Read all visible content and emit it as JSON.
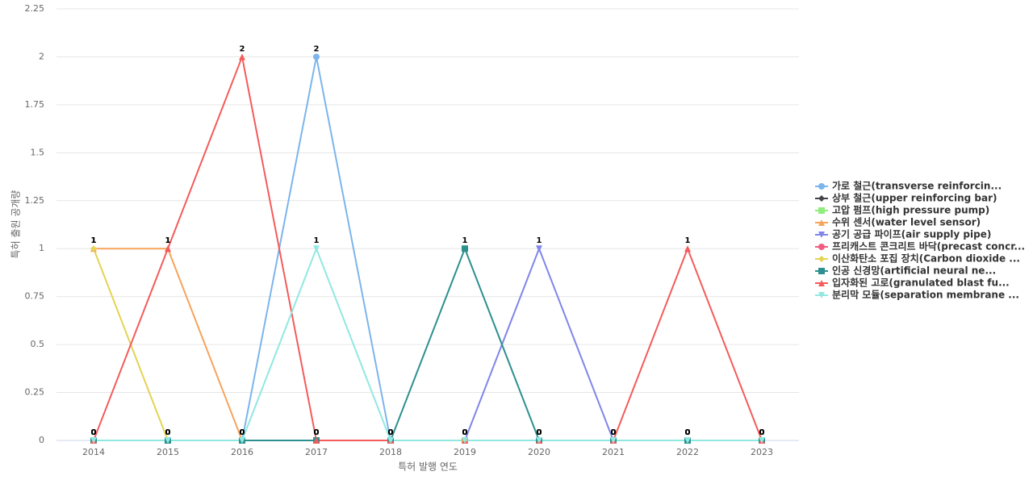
{
  "chart_data": {
    "type": "line",
    "x_label": "특허 발행 연도",
    "y_label": "특허 출원 공개량",
    "categories": [
      "2014",
      "2015",
      "2016",
      "2017",
      "2018",
      "2019",
      "2020",
      "2021",
      "2022",
      "2023"
    ],
    "ylim": [
      0,
      2.25
    ],
    "yticks": [
      0,
      0.25,
      0.5,
      0.75,
      1,
      1.25,
      1.5,
      1.75,
      2,
      2.25
    ],
    "grid": true,
    "series": [
      {
        "name": "가로 철근(transverse reinforcin...",
        "color": "#7cb5ec",
        "marker": "circle",
        "values": [
          0,
          0,
          0,
          2,
          0,
          0,
          0,
          0,
          0,
          0
        ]
      },
      {
        "name": "상부 철근(upper reinforcing bar)",
        "color": "#434348",
        "marker": "diamond",
        "values": [
          0,
          0,
          0,
          0,
          0,
          0,
          0,
          0,
          0,
          0
        ]
      },
      {
        "name": "고압 펌프(high pressure pump)",
        "color": "#90ed7d",
        "marker": "square",
        "values": [
          0,
          0,
          0,
          0,
          0,
          0,
          0,
          0,
          0,
          0
        ]
      },
      {
        "name": "수위 센서(water level sensor)",
        "color": "#f7a35c",
        "marker": "triangle",
        "values": [
          1,
          1,
          0,
          0,
          0,
          0,
          0,
          0,
          0,
          0
        ]
      },
      {
        "name": "공기 공급 파이프(air supply pipe)",
        "color": "#8085e9",
        "marker": "triangle-down",
        "values": [
          0,
          0,
          0,
          0,
          0,
          0,
          1,
          0,
          0,
          0
        ]
      },
      {
        "name": "프리캐스트 콘크리트 바닥(precast concr...",
        "color": "#f15c80",
        "marker": "circle",
        "values": [
          0,
          0,
          0,
          0,
          0,
          0,
          0,
          0,
          0,
          0
        ]
      },
      {
        "name": "이산화탄소 포집 장치(Carbon dioxide ...",
        "color": "#e4d354",
        "marker": "diamond",
        "values": [
          1,
          0,
          0,
          0,
          0,
          0,
          0,
          0,
          0,
          0
        ]
      },
      {
        "name": "인공 신경망(artificial neural ne...",
        "color": "#2b908f",
        "marker": "square",
        "values": [
          0,
          0,
          0,
          0,
          0,
          1,
          0,
          0,
          0,
          0
        ]
      },
      {
        "name": "입자화된 고로(granulated blast fu...",
        "color": "#f45b5b",
        "marker": "triangle",
        "values": [
          0,
          1,
          2,
          0,
          0,
          0,
          0,
          0,
          1,
          0
        ]
      },
      {
        "name": "분리막 모듈(separation membrane ...",
        "color": "#91e8e1",
        "marker": "triangle-down",
        "values": [
          0,
          0,
          0,
          1,
          0,
          0,
          0,
          0,
          0,
          0
        ]
      }
    ]
  }
}
